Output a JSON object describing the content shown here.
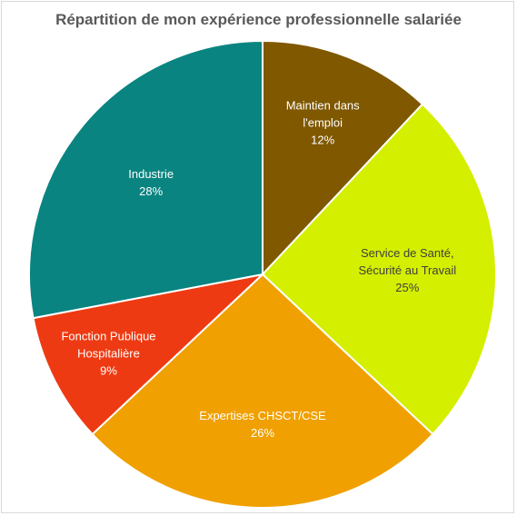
{
  "chart_data": {
    "type": "pie",
    "title": "Répartition de mon expérience professionnelle salariée",
    "slices": [
      {
        "label_lines": [
          "Maintien dans",
          "l'emploi"
        ],
        "value": 12,
        "display": "12%",
        "color": "#7f5800",
        "text_color": "#ffffff"
      },
      {
        "label_lines": [
          "Service de Santé,",
          "Sécurité au Travail"
        ],
        "value": 25,
        "display": "25%",
        "color": "#d4ef00",
        "text_color": "#404040"
      },
      {
        "label_lines": [
          "Expertises CHSCT/CSE"
        ],
        "value": 26,
        "display": "26%",
        "color": "#f0a000",
        "text_color": "#ffffff"
      },
      {
        "label_lines": [
          "Fonction Publique",
          "Hospitalière"
        ],
        "value": 9,
        "display": "9%",
        "color": "#ee3a12",
        "text_color": "#ffffff"
      },
      {
        "label_lines": [
          "Industrie"
        ],
        "value": 28,
        "display": "28%",
        "color": "#0a8480",
        "text_color": "#ffffff"
      }
    ]
  }
}
